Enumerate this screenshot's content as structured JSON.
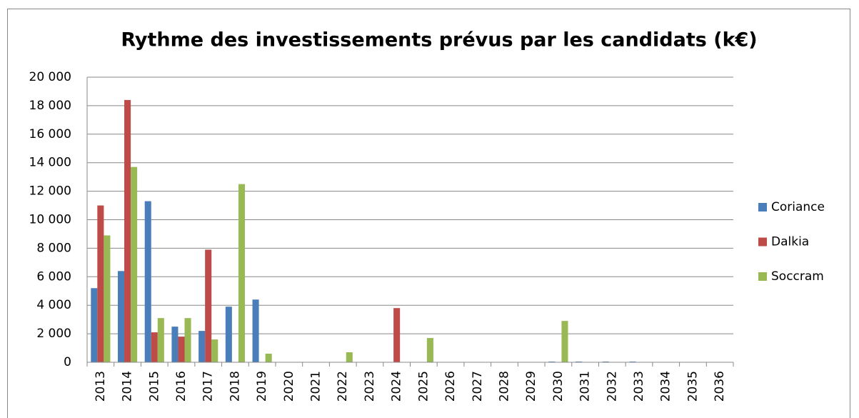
{
  "chart_data": {
    "type": "bar",
    "title": "Rythme des investissements prévus par les candidats (k€)",
    "categories": [
      "2013",
      "2014",
      "2015",
      "2016",
      "2017",
      "2018",
      "2019",
      "2020",
      "2021",
      "2022",
      "2023",
      "2024",
      "2025",
      "2026",
      "2027",
      "2028",
      "2029",
      "2030",
      "2031",
      "2032",
      "2033",
      "2034",
      "2035",
      "2036"
    ],
    "series": [
      {
        "name": "Coriance",
        "color": "#4a7ebb",
        "values": [
          5200,
          6400,
          11300,
          2500,
          2200,
          3900,
          4400,
          0,
          0,
          0,
          0,
          0,
          0,
          0,
          0,
          0,
          0,
          50,
          50,
          50,
          50,
          0,
          0,
          0
        ]
      },
      {
        "name": "Dalkia",
        "color": "#be4b48",
        "values": [
          11000,
          18400,
          2100,
          1800,
          7900,
          0,
          0,
          0,
          0,
          0,
          0,
          3800,
          0,
          0,
          0,
          0,
          0,
          0,
          0,
          0,
          0,
          0,
          0,
          0
        ]
      },
      {
        "name": "Soccram",
        "color": "#98b954",
        "values": [
          8900,
          13700,
          3100,
          3100,
          1600,
          12500,
          600,
          0,
          0,
          700,
          0,
          0,
          1700,
          0,
          0,
          0,
          0,
          2900,
          0,
          0,
          0,
          0,
          0,
          0
        ]
      }
    ],
    "ylim": [
      0,
      20000
    ],
    "yticks": [
      0,
      {
        "value": 2000,
        "label": "2 000"
      },
      {
        "value": 4000,
        "label": "4 000"
      },
      {
        "value": 6000,
        "label": "6 000"
      },
      {
        "value": 8000,
        "label": "8 000"
      },
      {
        "value": 10000,
        "label": "10 000"
      },
      {
        "value": 12000,
        "label": "12 000"
      },
      {
        "value": 14000,
        "label": "14 000"
      },
      {
        "value": 16000,
        "label": "16 000"
      },
      {
        "value": 18000,
        "label": "18 000"
      },
      {
        "value": 20000,
        "label": "20 000"
      }
    ],
    "grid": true,
    "legend": "right"
  }
}
